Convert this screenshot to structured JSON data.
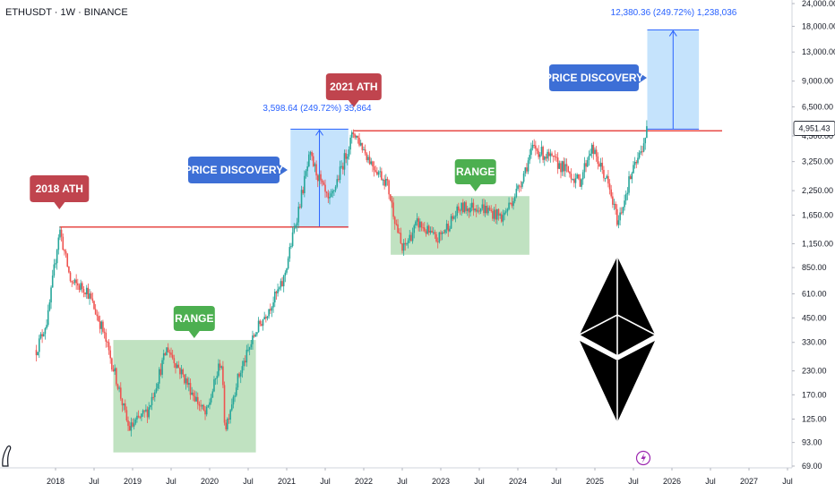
{
  "header": {
    "symbol_line": "ETHUSDT · 1W · BINANCE"
  },
  "colors": {
    "up": "#26a69a",
    "down": "#ef5350",
    "range_fill": "#a5d6a7",
    "range_label": "#4caf50",
    "discovery_fill": "#bbdefb",
    "discovery_label": "#3d6fd6",
    "ath_label": "#c0444e",
    "resistance": "#e53935",
    "measure": "#2962ff"
  },
  "chart_data": {
    "type": "candlestick",
    "title": "",
    "scale": "log",
    "y_ticks": [
      "24,000.00",
      "18,000.00",
      "13,000.00",
      "9,000.00",
      "6,500.00",
      "4,500.00",
      "3,250.00",
      "2,250.00",
      "1,650.00",
      "1,150.00",
      "850.00",
      "610.00",
      "450.00",
      "330.00",
      "230.00",
      "170.00",
      "125.00",
      "93.00",
      "69.00"
    ],
    "x_ticks": [
      "2018",
      "Jul",
      "2019",
      "Jul",
      "2020",
      "Jul",
      "2021",
      "Jul",
      "2022",
      "Jul",
      "2023",
      "Jul",
      "2024",
      "Jul",
      "2025",
      "Jul",
      "2026",
      "Jul",
      "2027",
      "Jul"
    ],
    "current_price": "4,951.43",
    "anchors": [
      {
        "t": 2017.75,
        "v": 300
      },
      {
        "t": 2017.9,
        "v": 450
      },
      {
        "t": 2018.05,
        "v": 1400
      },
      {
        "t": 2018.2,
        "v": 700
      },
      {
        "t": 2018.4,
        "v": 650
      },
      {
        "t": 2018.6,
        "v": 400
      },
      {
        "t": 2018.8,
        "v": 200
      },
      {
        "t": 2018.95,
        "v": 110
      },
      {
        "t": 2019.2,
        "v": 140
      },
      {
        "t": 2019.45,
        "v": 310
      },
      {
        "t": 2019.7,
        "v": 200
      },
      {
        "t": 2019.95,
        "v": 130
      },
      {
        "t": 2020.15,
        "v": 270
      },
      {
        "t": 2020.2,
        "v": 110
      },
      {
        "t": 2020.35,
        "v": 200
      },
      {
        "t": 2020.6,
        "v": 380
      },
      {
        "t": 2020.95,
        "v": 700
      },
      {
        "t": 2021.3,
        "v": 3500
      },
      {
        "t": 2021.55,
        "v": 1900
      },
      {
        "t": 2021.87,
        "v": 4750
      },
      {
        "t": 2022.1,
        "v": 3200
      },
      {
        "t": 2022.3,
        "v": 2500
      },
      {
        "t": 2022.5,
        "v": 1050
      },
      {
        "t": 2022.7,
        "v": 1500
      },
      {
        "t": 2022.95,
        "v": 1200
      },
      {
        "t": 2023.25,
        "v": 1800
      },
      {
        "t": 2023.5,
        "v": 1850
      },
      {
        "t": 2023.8,
        "v": 1600
      },
      {
        "t": 2024.0,
        "v": 2300
      },
      {
        "t": 2024.2,
        "v": 3900
      },
      {
        "t": 2024.6,
        "v": 3000
      },
      {
        "t": 2024.8,
        "v": 2500
      },
      {
        "t": 2024.95,
        "v": 3900
      },
      {
        "t": 2025.15,
        "v": 2600
      },
      {
        "t": 2025.3,
        "v": 1500
      },
      {
        "t": 2025.45,
        "v": 2600
      },
      {
        "t": 2025.6,
        "v": 3700
      },
      {
        "t": 2025.68,
        "v": 4951
      }
    ],
    "annotations": {
      "ath_2018": "2018 ATH",
      "ath_2021": "2021 ATH",
      "range_1": "RANGE",
      "range_2": "RANGE",
      "discovery_1": "PRICE DISCOVERY",
      "discovery_2": "PRICE DISCOVERY",
      "measure_1": "3,598.64 (249.72%) 35,864",
      "measure_2": "12,380.36 (249.72%) 1,238,036"
    },
    "levels": {
      "ath_2018_line": 1420,
      "ath_2021_line": 4800
    },
    "ranges": [
      {
        "t0": 2018.75,
        "t1": 2020.6,
        "v0": 82,
        "v1": 340
      },
      {
        "t0": 2022.35,
        "t1": 2024.15,
        "v0": 1000,
        "v1": 2100
      }
    ],
    "discoveries": [
      {
        "t0": 2021.05,
        "t1": 2021.8,
        "v0": 1420,
        "v1": 4900
      },
      {
        "t0": 2025.68,
        "t1": 2026.35,
        "v0": 4900,
        "v1": 17200
      }
    ]
  }
}
